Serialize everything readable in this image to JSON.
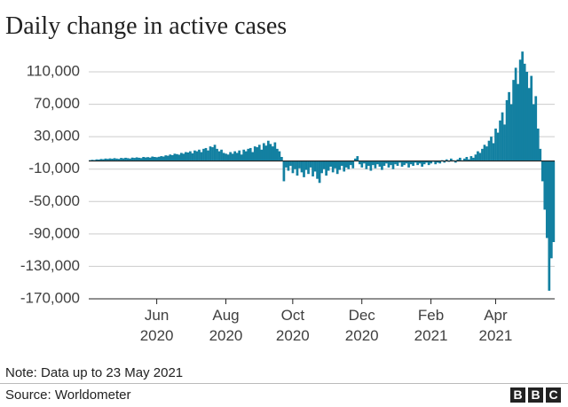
{
  "chart_data": {
    "type": "bar",
    "title": "Daily change in active cases",
    "note": "Note: Data up to 23 May 2021",
    "source": "Source: Worldometer",
    "logo": [
      "B",
      "B",
      "C"
    ],
    "color": "#1380a1",
    "grid": true,
    "ylim": [
      -170000,
      145000
    ],
    "yticks": [
      {
        "value": 110000,
        "label": "110,000"
      },
      {
        "value": 70000,
        "label": "70,000"
      },
      {
        "value": 30000,
        "label": "30,000"
      },
      {
        "value": -10000,
        "label": "-10,000"
      },
      {
        "value": -50000,
        "label": "-50,000"
      },
      {
        "value": -90000,
        "label": "-90,000"
      },
      {
        "value": -130000,
        "label": "-130,000"
      },
      {
        "value": -170000,
        "label": "-170,000"
      }
    ],
    "categories": [
      null,
      null,
      null,
      null,
      null,
      null,
      null,
      null,
      null,
      null,
      null,
      null,
      null,
      null,
      null,
      null,
      null,
      null,
      null,
      null,
      null,
      null,
      null,
      null,
      null,
      null,
      null,
      null,
      null,
      null,
      "Jun\n2020",
      null,
      null,
      null,
      null,
      null,
      null,
      null,
      null,
      null,
      null,
      null,
      null,
      null,
      null,
      null,
      null,
      null,
      null,
      null,
      null,
      null,
      null,
      null,
      null,
      null,
      null,
      null,
      null,
      null,
      null,
      "Aug\n2020",
      null,
      null,
      null,
      null,
      null,
      null,
      null,
      null,
      null,
      null,
      null,
      null,
      null,
      null,
      null,
      null,
      null,
      null,
      null,
      null,
      null,
      null,
      null,
      null,
      null,
      null,
      null,
      null,
      null,
      "Oct\n2020",
      null,
      null,
      null,
      null,
      null,
      null,
      null,
      null,
      null,
      null,
      null,
      null,
      null,
      null,
      null,
      null,
      null,
      null,
      null,
      null,
      null,
      null,
      null,
      null,
      null,
      null,
      null,
      null,
      null,
      null,
      "Dec\n2020",
      null,
      null,
      null,
      null,
      null,
      null,
      null,
      null,
      null,
      null,
      null,
      null,
      null,
      null,
      null,
      null,
      null,
      null,
      null,
      null,
      null,
      null,
      null,
      null,
      null,
      null,
      null,
      null,
      null,
      null,
      "Feb\n2021",
      null,
      null,
      null,
      null,
      null,
      null,
      null,
      null,
      null,
      null,
      null,
      null,
      null,
      null,
      null,
      null,
      null,
      null,
      null,
      null,
      null,
      null,
      null,
      null,
      null,
      null,
      null,
      null,
      "Apr\n2021",
      null,
      null,
      null,
      null,
      null,
      null,
      null,
      null,
      null,
      null,
      null,
      null,
      null,
      null,
      null,
      null,
      null,
      null,
      null,
      null,
      null,
      null,
      null,
      null,
      null,
      null
    ],
    "values": [
      1000,
      1500,
      1200,
      2000,
      1800,
      2500,
      2200,
      3000,
      2600,
      3200,
      2800,
      3500,
      3000,
      2600,
      3800,
      3300,
      4000,
      3500,
      3000,
      4200,
      3800,
      4500,
      4000,
      3600,
      5000,
      4400,
      4800,
      4200,
      5500,
      5000,
      4600,
      5200,
      6000,
      5500,
      7000,
      6500,
      8000,
      7200,
      9000,
      8500,
      7800,
      10000,
      9000,
      11000,
      10500,
      12000,
      9500,
      13000,
      12000,
      14000,
      11000,
      15000,
      16000,
      13000,
      18000,
      17000,
      20000,
      15000,
      12000,
      14000,
      10000,
      9000,
      8000,
      11000,
      9000,
      12000,
      10000,
      13000,
      8000,
      14000,
      12000,
      15000,
      16000,
      11000,
      18000,
      17000,
      20000,
      14000,
      22000,
      19000,
      25000,
      21000,
      18000,
      23000,
      15000,
      12000,
      5000,
      -25000,
      -8000,
      -12000,
      -6000,
      -15000,
      -10000,
      -18000,
      -9000,
      -14000,
      -20000,
      -11000,
      -16000,
      -8000,
      -19000,
      -13000,
      -22000,
      -27000,
      -15000,
      -10000,
      -18000,
      -12000,
      -7000,
      -14000,
      -9000,
      -16000,
      -11000,
      -6000,
      -13000,
      -8000,
      -10000,
      -5000,
      -9000,
      3000,
      6000,
      -4000,
      -8000,
      -3000,
      -10000,
      -6000,
      -12000,
      -5000,
      -9000,
      -4000,
      -7000,
      -11000,
      -6000,
      -3000,
      -8000,
      -5000,
      -10000,
      -4000,
      -6000,
      -2000,
      -7000,
      -5000,
      -3000,
      -8000,
      -4000,
      -6000,
      -2000,
      -5000,
      -3000,
      -7000,
      -4000,
      -2000,
      -5000,
      -3000,
      -1000,
      -4000,
      -2000,
      -3000,
      1000,
      -2000,
      2000,
      -1000,
      3000,
      1000,
      -2000,
      2000,
      4000,
      1000,
      3000,
      5000,
      2000,
      6000,
      4000,
      8000,
      12000,
      10000,
      15000,
      20000,
      18000,
      25000,
      30000,
      22000,
      40000,
      35000,
      50000,
      60000,
      45000,
      75000,
      85000,
      70000,
      100000,
      115000,
      95000,
      125000,
      135000,
      120000,
      110000,
      90000,
      105000,
      70000,
      80000,
      40000,
      15000,
      -25000,
      -60000,
      -95000,
      -160000,
      -120000,
      -100000
    ]
  }
}
